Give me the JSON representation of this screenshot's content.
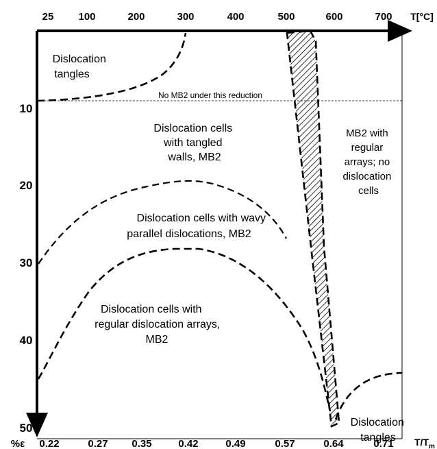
{
  "axes": {
    "top_label": "T[°C]",
    "top_ticks": [
      "25",
      "100",
      "200",
      "300",
      "400",
      "500",
      "600",
      "700"
    ],
    "left_label": "%ε",
    "left_ticks": [
      "10",
      "20",
      "30",
      "40",
      "50"
    ],
    "bottom_label": "T/T",
    "bottom_label_sub": "m",
    "bottom_ticks": [
      "0.22",
      "0.27",
      "0.35",
      "0.42",
      "0.49",
      "0.57",
      "0.64",
      "0.71"
    ]
  },
  "reference_line": {
    "label": "No MB2 under this reduction",
    "strain": 9.5
  },
  "regions": {
    "tangles_top": [
      "Dislocation",
      "tangles"
    ],
    "cells_tangled": [
      "Dislocation cells",
      "with tangled",
      "walls, MB2"
    ],
    "cells_wavy": [
      "Dislocation cells with wavy",
      "parallel dislocations, MB2"
    ],
    "cells_regular": [
      "Dislocation cells with",
      "regular dislocation arrays,",
      "MB2"
    ],
    "mb2_arrays": [
      "MB2 with",
      "regular",
      "arrays; no",
      "dislocation",
      "cells"
    ],
    "tangles_bottom": [
      "Dislocation",
      "tangles"
    ]
  },
  "colors": {
    "ink": "#000000",
    "background": "#ffffff"
  }
}
